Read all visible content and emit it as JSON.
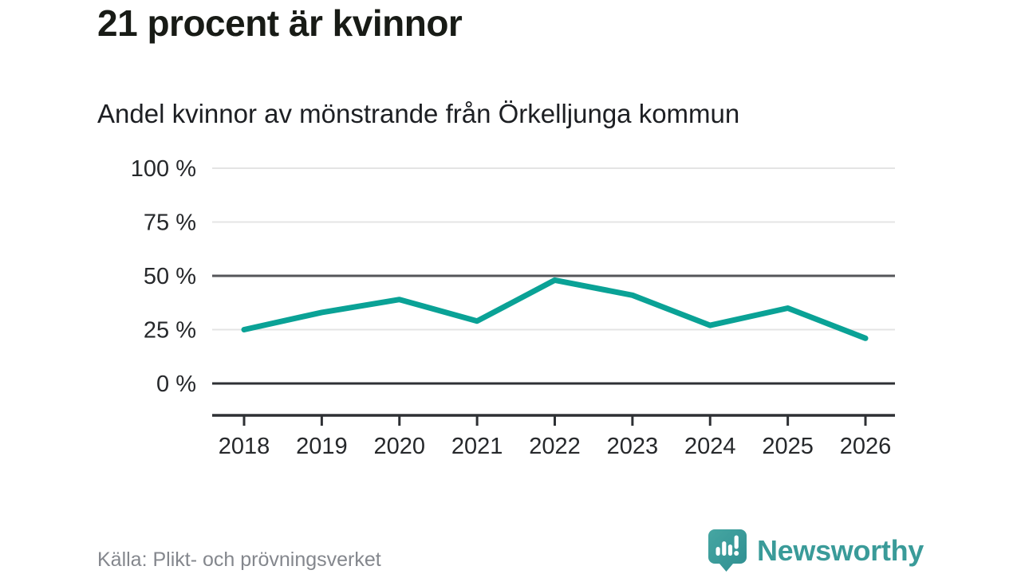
{
  "header": {
    "title": "21 procent är kvinnor",
    "subtitle": "Andel kvinnor av mönstrande från Örkelljunga kommun"
  },
  "footer": {
    "source": "Källa: Plikt- och prövningsverket",
    "brand": "Newsworthy"
  },
  "colors": {
    "accent_line": "#0aa296",
    "brand_teal": "#3a9b99",
    "grid_light": "#e4e4e4",
    "grid_mid": "#55565a",
    "axis_dark": "#2e3034",
    "tick_text": "#26282b",
    "muted_text": "#84878d"
  },
  "chart_data": {
    "type": "line",
    "title": "21 procent är kvinnor",
    "subtitle": "Andel kvinnor av mönstrande från Örkelljunga kommun",
    "x": [
      "2018",
      "2019",
      "2020",
      "2021",
      "2022",
      "2023",
      "2024",
      "2025",
      "2026"
    ],
    "series": [
      {
        "name": "Andel kvinnor av mönstrande",
        "values": [
          25,
          33,
          39,
          29,
          48,
          41,
          27,
          35,
          21
        ]
      }
    ],
    "xlabel": "",
    "ylabel": "",
    "ylim": [
      0,
      100
    ],
    "yticks": [
      0,
      25,
      50,
      75,
      100
    ],
    "ytick_labels": [
      "0 %",
      "25 %",
      "50 %",
      "75 %",
      "100 %"
    ],
    "emphasized_gridlines": [
      0,
      50
    ],
    "grid": true,
    "legend": "none",
    "line_color": "#0aa296",
    "line_width": 7
  }
}
